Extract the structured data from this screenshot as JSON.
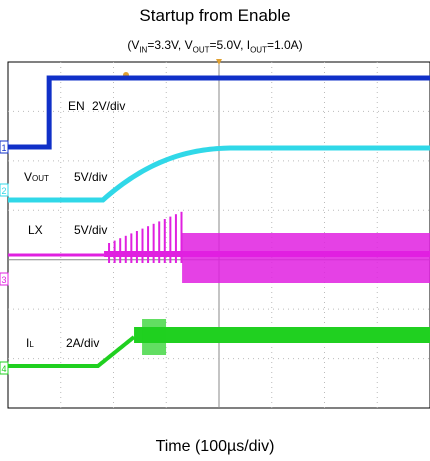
{
  "chart_data": {
    "type": "line",
    "title": "Startup from Enable",
    "subtitle": {
      "open": "(V",
      "vin_sub": "IN",
      "vin_val": "=3.3V, V",
      "vout_sub": "OUT",
      "vout_val": "=5.0V, I",
      "iout_sub": "OUT",
      "iout_val": "=1.0A)"
    },
    "xlabel": "Time (100µs/div)",
    "grid": true,
    "grid_divisions": {
      "x": 8,
      "y": 7
    },
    "x_range_div": [
      0,
      8
    ],
    "channels": [
      {
        "id": "ch1",
        "marker": "1",
        "label": "EN",
        "label_sub": "",
        "scale": "2V/div",
        "color": "#1030c8",
        "low_div": 6.25,
        "high_div": 6.25
      },
      {
        "id": "ch2",
        "marker": "2",
        "label": "V",
        "label_sub": "OUT",
        "scale": "5V/div",
        "color": "#30d8e8",
        "low_div": 0,
        "high_div": 1.0
      },
      {
        "id": "ch3",
        "marker": "3",
        "label": "LX",
        "label_sub": "",
        "scale": "5V/div",
        "color": "#e020e0",
        "low_div": 0,
        "high_div": 1.0
      },
      {
        "id": "ch4",
        "marker": "4",
        "label": "I",
        "label_sub": "L",
        "scale": "2A/div",
        "color": "#20d020",
        "low_div": 0,
        "high_div": 0.65
      }
    ],
    "events_div": {
      "enable_rise": 0.78,
      "vout_ramp_start": 1.8,
      "vout_ramp_end": 3.2,
      "switching_start": 2.2,
      "switching_full": 3.3
    },
    "trigger_marker": "T"
  }
}
